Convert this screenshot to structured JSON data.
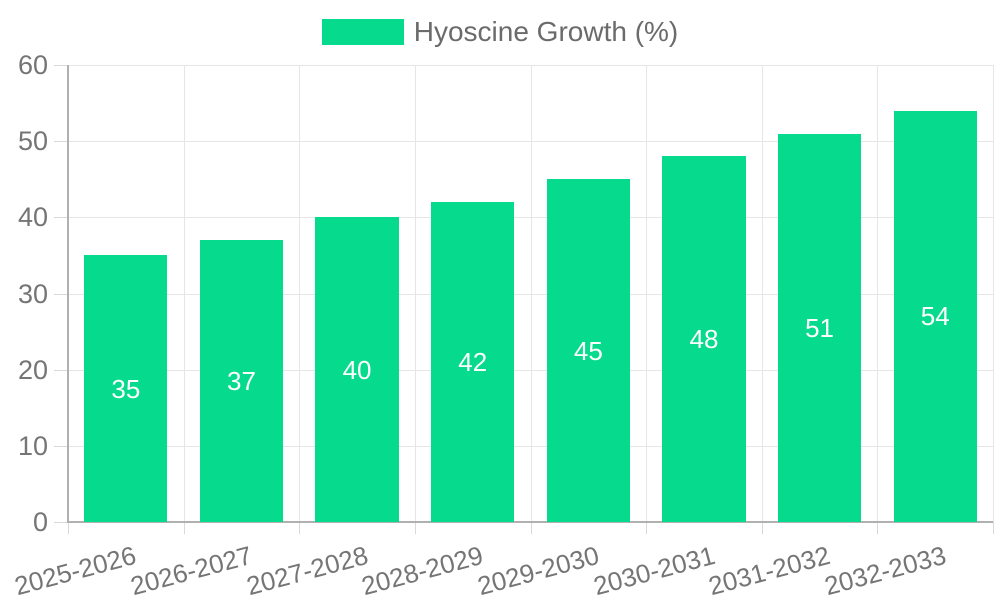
{
  "chart_data": {
    "type": "bar",
    "title": "",
    "series_name": "Hyoscine Growth (%)",
    "categories": [
      "2025-2026",
      "2026-2027",
      "2027-2028",
      "2028-2029",
      "2029-2030",
      "2030-2031",
      "2031-2032",
      "2032-2033"
    ],
    "values": [
      35,
      37,
      40,
      42,
      45,
      48,
      51,
      54
    ],
    "xlabel": "",
    "ylabel": "",
    "ylim": [
      0,
      60
    ],
    "yticks": [
      0,
      10,
      20,
      30,
      40,
      50,
      60
    ],
    "grid": true,
    "legend_position": "top-center",
    "value_label_position": "inside-middle",
    "x_tick_rotation_deg": -15
  },
  "colors": {
    "bar": "#06da8c",
    "axis_text": "#757575",
    "legend_text": "#6b6b6b",
    "grid": "#e6e6e6",
    "tick_mark": "#d9d9d9",
    "axis_line": "#b0b0b0",
    "value_text": "#ffffff",
    "background": "#ffffff"
  }
}
